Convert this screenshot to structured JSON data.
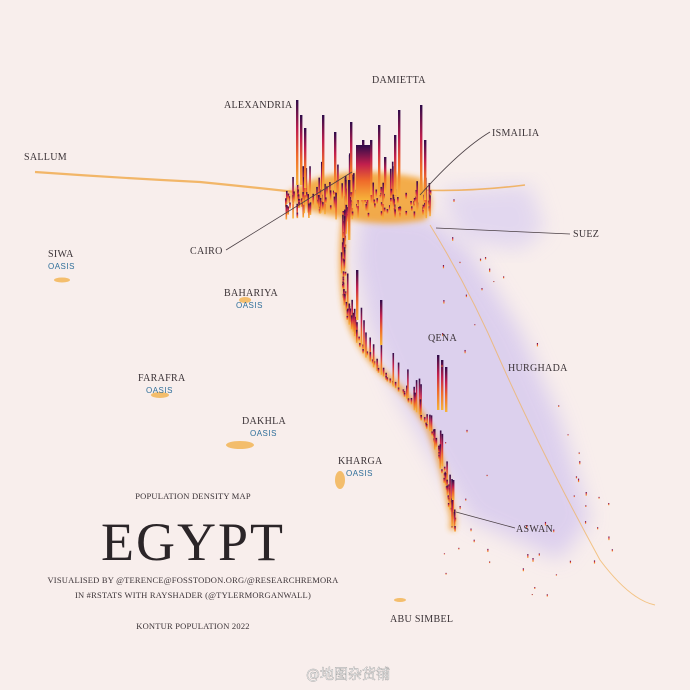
{
  "labels": [
    {
      "name": "SALLUM"
    },
    {
      "name": "ALEXANDRIA"
    },
    {
      "name": "DAMIETTA"
    },
    {
      "name": "ISMAILIA"
    },
    {
      "name": "SUEZ"
    },
    {
      "name": "CAIRO"
    },
    {
      "name": "SIWA",
      "sub": "OASIS"
    },
    {
      "name": "BAHARIYA",
      "sub": "OASIS"
    },
    {
      "name": "FARAFRA",
      "sub": "OASIS"
    },
    {
      "name": "DAKHLA",
      "sub": "OASIS"
    },
    {
      "name": "KHARGA",
      "sub": "OASIS"
    },
    {
      "name": "QENA"
    },
    {
      "name": "HURGHADA"
    },
    {
      "name": "ASWAN"
    },
    {
      "name": "ABU SIMBEL"
    }
  ],
  "title_block": {
    "subtitle": "POPULATION DENSITY MAP",
    "title": "EGYPT",
    "credits": [
      "VISUALISED BY @TERENCE@FOSSTODON.ORG/@RESEARCHREMORA",
      "IN #RSTATS WITH RAYSHADER (@TYLERMORGANWALL)"
    ],
    "source": "KONTUR POPULATION 2022"
  },
  "watermark": "@地图杂货铺"
}
